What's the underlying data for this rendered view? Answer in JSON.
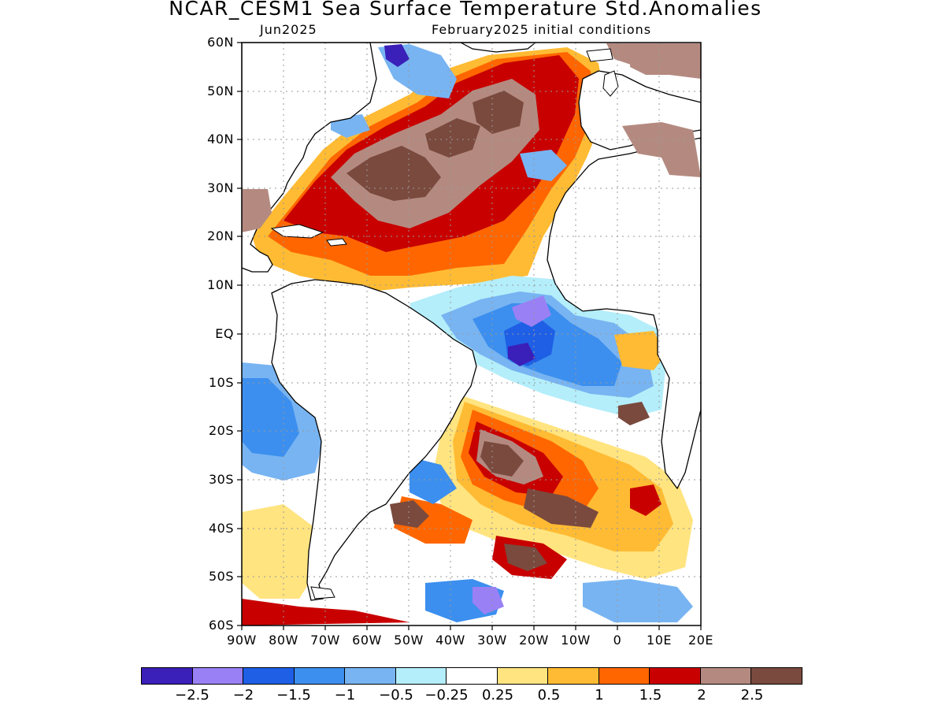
{
  "title": "NCAR_CESM1 Sea Surface Temperature Std.Anomalies",
  "subtitle_left": "Jun2025",
  "subtitle_right": "February2025 initial conditions",
  "axes": {
    "y_labels": [
      "60N",
      "50N",
      "40N",
      "30N",
      "20N",
      "10N",
      "EQ",
      "10S",
      "20S",
      "30S",
      "40S",
      "50S",
      "60S"
    ],
    "x_labels": [
      "90W",
      "80W",
      "70W",
      "60W",
      "50W",
      "40W",
      "30W",
      "20W",
      "10W",
      "0",
      "10E",
      "20E"
    ],
    "lat_range": [
      -60,
      60
    ],
    "lon_range": [
      -90,
      20
    ],
    "grid": "dotted"
  },
  "colorbar": {
    "colors": [
      "#3a1fb8",
      "#9a80f5",
      "#1e5fe6",
      "#3c8fee",
      "#78b4f2",
      "#b4eefa",
      "#ffffff",
      "#ffe480",
      "#ffbb33",
      "#ff6600",
      "#c80000",
      "#b48a80",
      "#7a4a3e"
    ],
    "labels": [
      "-2.5",
      "-2",
      "-1.5",
      "-1",
      "-0.5",
      "-0.25",
      "0.25",
      "0.5",
      "1",
      "1.5",
      "2",
      "2.5"
    ]
  }
}
